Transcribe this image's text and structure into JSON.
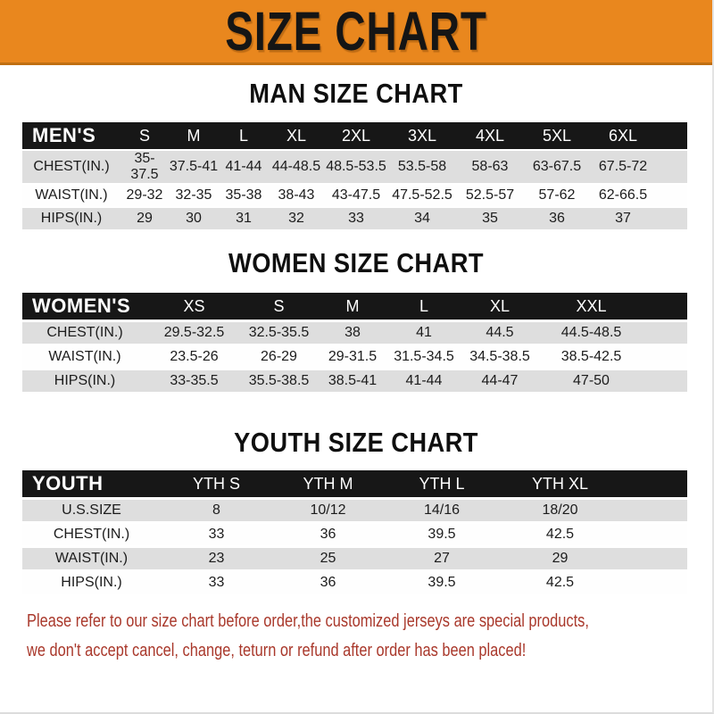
{
  "banner": {
    "title": "SIZE CHART",
    "bg_color": "#E9871E"
  },
  "sections": [
    {
      "heading": "MAN SIZE CHART",
      "header_label": "MEN'S",
      "columns": [
        "S",
        "M",
        "L",
        "XL",
        "2XL",
        "3XL",
        "4XL",
        "5XL",
        "6XL"
      ],
      "rows": [
        {
          "label": "CHEST(IN.)",
          "values": [
            "35-37.5",
            "37.5-41",
            "41-44",
            "44-48.5",
            "48.5-53.5",
            "53.5-58",
            "58-63",
            "63-67.5",
            "67.5-72"
          ]
        },
        {
          "label": "WAIST(IN.)",
          "values": [
            "29-32",
            "32-35",
            "35-38",
            "38-43",
            "43-47.5",
            "47.5-52.5",
            "52.5-57",
            "57-62",
            "62-66.5"
          ]
        },
        {
          "label": "HIPS(IN.)",
          "values": [
            "29",
            "30",
            "31",
            "32",
            "33",
            "34",
            "35",
            "36",
            "37"
          ]
        }
      ]
    },
    {
      "heading": "WOMEN SIZE CHART",
      "header_label": "WOMEN'S",
      "columns": [
        "XS",
        "S",
        "M",
        "L",
        "XL",
        "XXL"
      ],
      "rows": [
        {
          "label": "CHEST(IN.)",
          "values": [
            "29.5-32.5",
            "32.5-35.5",
            "38",
            "41",
            "44.5",
            "44.5-48.5"
          ]
        },
        {
          "label": "WAIST(IN.)",
          "values": [
            "23.5-26",
            "26-29",
            "29-31.5",
            "31.5-34.5",
            "34.5-38.5",
            "38.5-42.5"
          ]
        },
        {
          "label": "HIPS(IN.)",
          "values": [
            "33-35.5",
            "35.5-38.5",
            "38.5-41",
            "41-44",
            "44-47",
            "47-50"
          ]
        }
      ]
    },
    {
      "heading": "YOUTH SIZE CHART",
      "header_label": "YOUTH",
      "columns": [
        "YTH S",
        "YTH M",
        "YTH L",
        "YTH XL"
      ],
      "rows": [
        {
          "label": "U.S.SIZE",
          "values": [
            "8",
            "10/12",
            "14/16",
            "18/20"
          ]
        },
        {
          "label": "CHEST(IN.)",
          "values": [
            "33",
            "36",
            "39.5",
            "42.5"
          ]
        },
        {
          "label": "WAIST(IN.)",
          "values": [
            "23",
            "25",
            "27",
            "29"
          ]
        },
        {
          "label": "HIPS(IN.)",
          "values": [
            "33",
            "36",
            "39.5",
            "42.5"
          ]
        }
      ]
    }
  ],
  "footer": {
    "line1": "Please refer to our size chart before order,the customized jerseys are special products,",
    "line2": "we don't accept cancel, change, teturn or refund after order has been placed!",
    "text_color": "#A9382B"
  }
}
